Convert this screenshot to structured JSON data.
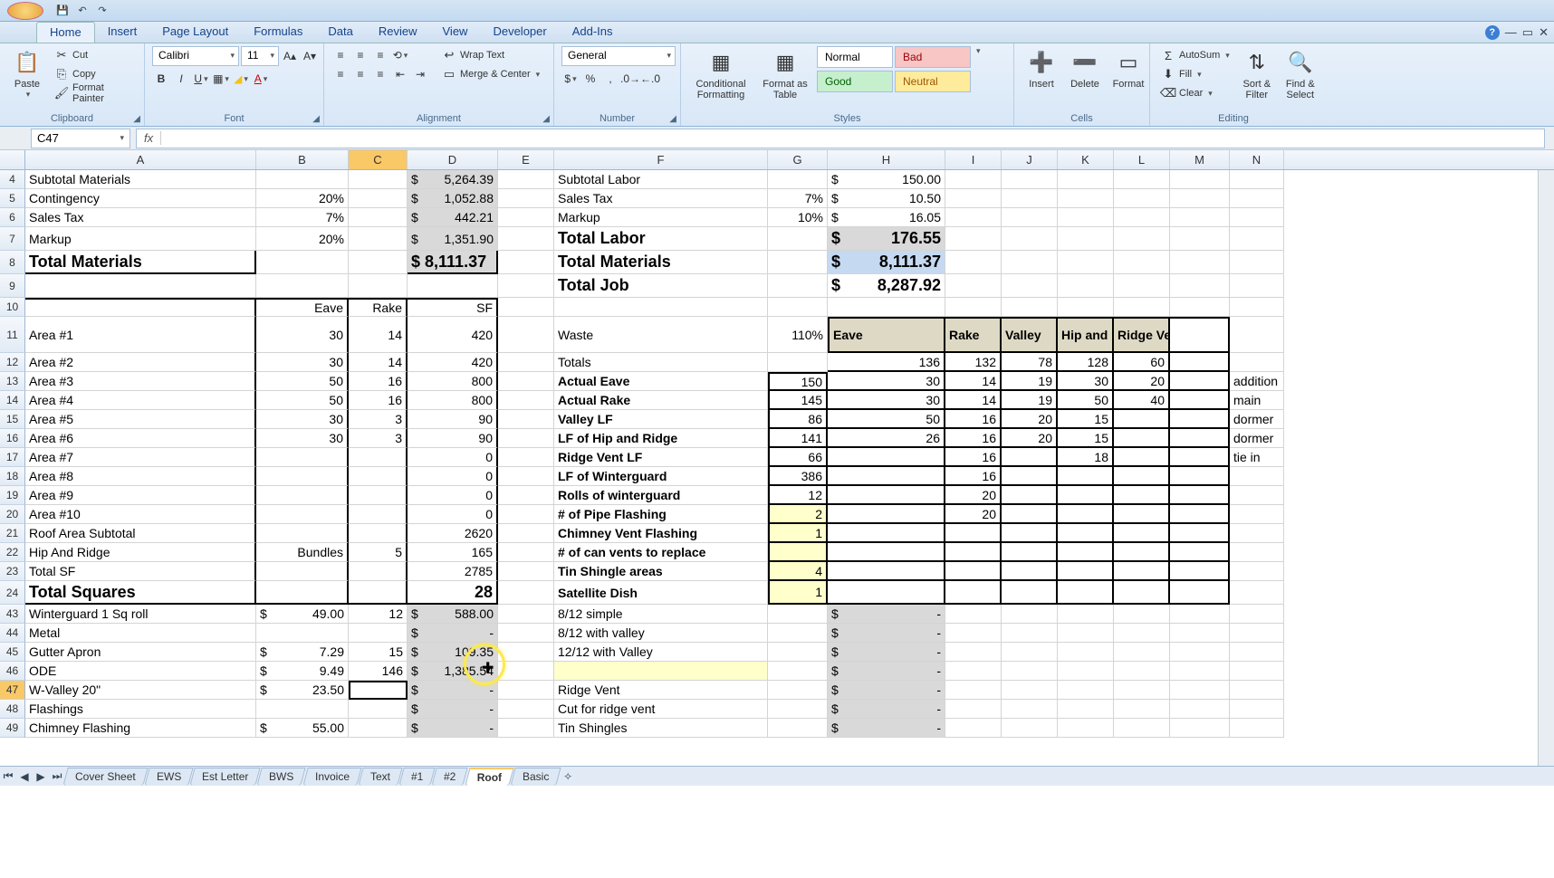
{
  "tabs": {
    "home": "Home",
    "insert": "Insert",
    "pagelayout": "Page Layout",
    "formulas": "Formulas",
    "data": "Data",
    "review": "Review",
    "view": "View",
    "developer": "Developer",
    "addins": "Add-Ins"
  },
  "clipboard": {
    "paste": "Paste",
    "cut": "Cut",
    "copy": "Copy",
    "fp": "Format Painter",
    "label": "Clipboard"
  },
  "font": {
    "name": "Calibri",
    "size": "11",
    "label": "Font"
  },
  "align": {
    "wrap": "Wrap Text",
    "merge": "Merge & Center",
    "label": "Alignment"
  },
  "number": {
    "fmt": "General",
    "label": "Number"
  },
  "styles": {
    "cf": "Conditional Formatting",
    "fat": "Format as Table",
    "normal": "Normal",
    "bad": "Bad",
    "good": "Good",
    "neutral": "Neutral",
    "label": "Styles"
  },
  "cells": {
    "insert": "Insert",
    "delete": "Delete",
    "format": "Format",
    "label": "Cells"
  },
  "editing": {
    "autosum": "AutoSum",
    "fill": "Fill",
    "clear": "Clear",
    "sort": "Sort & Filter",
    "find": "Find & Select",
    "label": "Editing"
  },
  "namebox": "C47",
  "cols": [
    "A",
    "B",
    "C",
    "D",
    "E",
    "F",
    "G",
    "H",
    "I",
    "J",
    "K",
    "L",
    "M",
    "N"
  ],
  "rows": {
    "4": {
      "A": "Subtotal Materials",
      "D$": "$",
      "D": "5,264.39",
      "F": "Subtotal Labor",
      "H$": "$",
      "H": "150.00"
    },
    "5": {
      "A": "Contingency",
      "B": "20%",
      "D$": "$",
      "D": "1,052.88",
      "F": "Sales Tax",
      "G": "7%",
      "H$": "$",
      "H": "10.50"
    },
    "6": {
      "A": "Sales Tax",
      "B": "7%",
      "D$": "$",
      "D": "442.21",
      "F": "Markup",
      "G": "10%",
      "H$": "$",
      "H": "16.05"
    },
    "7": {
      "A": "Markup",
      "B": "20%",
      "D$": "$",
      "D": "1,351.90",
      "F": "Total Labor",
      "H$": "$",
      "H": "176.55"
    },
    "8": {
      "A": "Total Materials",
      "D": "$ 8,111.37",
      "F": "Total Materials",
      "H$": "$",
      "H": "8,111.37"
    },
    "9": {
      "F": "Total Job",
      "H$": "$",
      "H": "8,287.92"
    },
    "10": {
      "B": "Eave",
      "C": "Rake",
      "D": "SF"
    },
    "11": {
      "A": "Area #1",
      "B": "30",
      "C": "14",
      "D": "420",
      "F": "Waste",
      "G": "110%",
      "H": "Eave",
      "I": "Rake",
      "J": "Valley",
      "K": "Hip and Ridge",
      "L": "Ridge Vent"
    },
    "12": {
      "A": "Area #2",
      "B": "30",
      "C": "14",
      "D": "420",
      "F": "Totals",
      "H": "136",
      "I": "132",
      "J": "78",
      "K": "128",
      "L": "60"
    },
    "13": {
      "A": "Area #3",
      "B": "50",
      "C": "16",
      "D": "800",
      "F": "Actual Eave",
      "G": "150",
      "H": "30",
      "I": "14",
      "J": "19",
      "K": "30",
      "L": "20",
      "N": "addition"
    },
    "14": {
      "A": "Area #4",
      "B": "50",
      "C": "16",
      "D": "800",
      "F": "Actual Rake",
      "G": "145",
      "H": "30",
      "I": "14",
      "J": "19",
      "K": "50",
      "L": "40",
      "N": "main"
    },
    "15": {
      "A": "Area #5",
      "B": "30",
      "C": "3",
      "D": "90",
      "F": "Valley LF",
      "G": "86",
      "H": "50",
      "I": "16",
      "J": "20",
      "K": "15",
      "N": "dormer"
    },
    "16": {
      "A": "Area #6",
      "B": "30",
      "C": "3",
      "D": "90",
      "F": "LF of Hip and Ridge",
      "G": "141",
      "H": "26",
      "I": "16",
      "J": "20",
      "K": "15",
      "N": "dormer"
    },
    "17": {
      "A": "Area #7",
      "D": "0",
      "F": "Ridge Vent LF",
      "G": "66",
      "I": "16",
      "K": "18",
      "N": "tie in"
    },
    "18": {
      "A": "Area #8",
      "D": "0",
      "F": "LF of Winterguard",
      "G": "386",
      "I": "16"
    },
    "19": {
      "A": "Area #9",
      "D": "0",
      "F": "Rolls of winterguard",
      "G": "12",
      "I": "20"
    },
    "20": {
      "A": "Area #10",
      "D": "0",
      "F": "# of Pipe Flashing",
      "G": "2",
      "I": "20"
    },
    "21": {
      "A": "Roof Area Subtotal",
      "D": "2620",
      "F": "Chimney Vent Flashing",
      "G": "1"
    },
    "22": {
      "A": "Hip And Ridge",
      "B": "Bundles",
      "C": "5",
      "D": "165",
      "F": "# of can vents to replace"
    },
    "23": {
      "A": "Total SF",
      "D": "2785",
      "F": "Tin Shingle areas",
      "G": "4"
    },
    "24": {
      "A": "Total Squares",
      "D": "28",
      "F": "Satellite Dish",
      "G": "1"
    },
    "43": {
      "A": "  Winterguard 1 Sq roll",
      "B$": "$",
      "B": "49.00",
      "C": "12",
      "D$": "$",
      "D": "588.00",
      "F": "8/12 simple",
      "H$": "$",
      "H": "-"
    },
    "44": {
      "A": "Metal",
      "D$": "$",
      "D": "-",
      "F": "8/12 with valley",
      "H$": "$",
      "H": "-"
    },
    "45": {
      "A": "  Gutter Apron",
      "B$": "$",
      "B": "7.29",
      "C": "15",
      "D$": "$",
      "D": "109.35",
      "F": "12/12 with Valley",
      "H$": "$",
      "H": "-"
    },
    "46": {
      "A": "  ODE",
      "B$": "$",
      "B": "9.49",
      "C": "146",
      "D$": "$",
      "D": "1,385.54",
      "H$": "$",
      "H": "-"
    },
    "47": {
      "A": "  W-Valley 20\"",
      "B$": "$",
      "B": "23.50",
      "D$": "$",
      "D": "-",
      "F": "Ridge Vent",
      "H$": "$",
      "H": "-"
    },
    "48": {
      "A": "Flashings",
      "D$": "$",
      "D": "-",
      "F": "Cut for ridge vent",
      "H$": "$",
      "H": "-"
    },
    "49": {
      "A": "  Chimney Flashing",
      "B$": "$",
      "B": "55.00",
      "D$": "$",
      "D": "-",
      "F": "Tin Shingles",
      "H$": "$",
      "H": "-"
    }
  },
  "sheets": [
    "Cover Sheet",
    "EWS",
    "Est Letter",
    "BWS",
    "Invoice",
    "Text",
    "#1",
    "#2",
    "Roof",
    "Basic"
  ],
  "activeSheet": "Roof"
}
